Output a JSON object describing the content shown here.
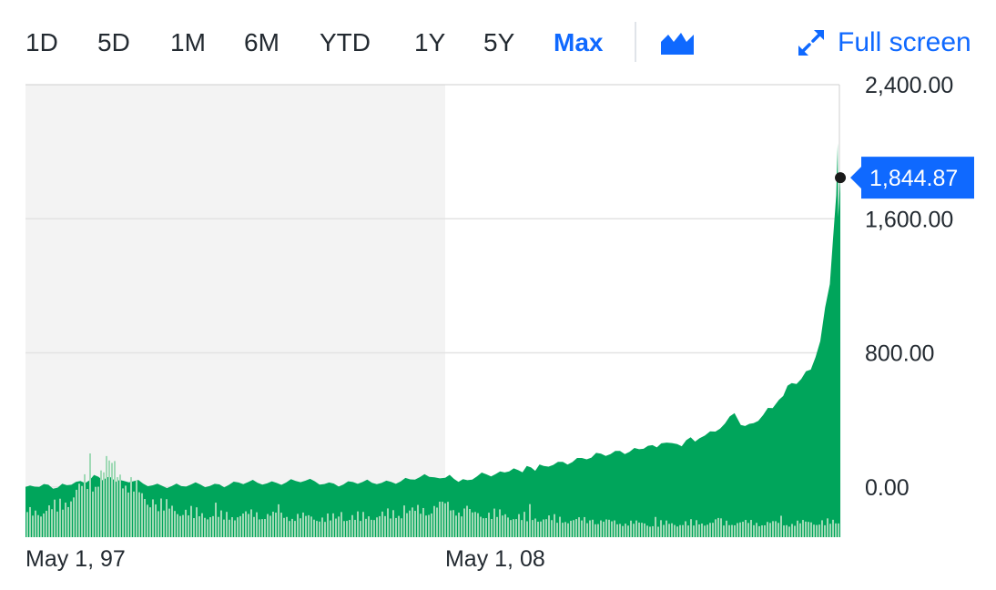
{
  "range_buttons": [
    {
      "label": "1D",
      "active": false
    },
    {
      "label": "5D",
      "active": false
    },
    {
      "label": "1M",
      "active": false
    },
    {
      "label": "6M",
      "active": false
    },
    {
      "label": "YTD",
      "active": false
    },
    {
      "label": "1Y",
      "active": false
    },
    {
      "label": "5Y",
      "active": false
    },
    {
      "label": "Max",
      "active": true
    }
  ],
  "chart_type_icon": "area-chart-icon",
  "fullscreen": {
    "label": "Full screen",
    "icon": "expand-arrows-icon"
  },
  "colors": {
    "accent": "#0f69ff",
    "area_fill": "#00a55b",
    "volume_bar": "#9fd9b5",
    "shaded_band": "#f3f3f3",
    "grid": "#e3e3e3",
    "flag": "#0f69ff"
  },
  "chart_data": {
    "type": "area",
    "x_start": "1997-05",
    "x_end": "2018-09",
    "x_ticks": [
      {
        "label": "May 1, 97",
        "date": "1997-05"
      },
      {
        "label": "May 1, 08",
        "date": "2008-05"
      }
    ],
    "y_ticks": [
      "2,400.00",
      "1,600.00",
      "800.00",
      "0.00"
    ],
    "y_tick_values": [
      2400,
      1600,
      800,
      0
    ],
    "ylim": [
      -300,
      2400
    ],
    "shaded_period": {
      "start": "1997-05",
      "end": "2008-05"
    },
    "current_price": 1844.87,
    "current_price_label": "1,844.87",
    "grid": true,
    "price_series": [
      {
        "x": "1997-05",
        "y": 0
      },
      {
        "x": "1998-06",
        "y": 10
      },
      {
        "x": "1999-04",
        "y": 60
      },
      {
        "x": "1999-12",
        "y": 35
      },
      {
        "x": "2000-06",
        "y": 20
      },
      {
        "x": "2001-06",
        "y": 5
      },
      {
        "x": "2002-06",
        "y": 15
      },
      {
        "x": "2003-06",
        "y": 25
      },
      {
        "x": "2004-06",
        "y": 35
      },
      {
        "x": "2005-06",
        "y": 20
      },
      {
        "x": "2006-06",
        "y": 25
      },
      {
        "x": "2007-06",
        "y": 45
      },
      {
        "x": "2007-12",
        "y": 60
      },
      {
        "x": "2008-05",
        "y": 55
      },
      {
        "x": "2008-12",
        "y": 40
      },
      {
        "x": "2009-06",
        "y": 75
      },
      {
        "x": "2010-04",
        "y": 100
      },
      {
        "x": "2010-12",
        "y": 125
      },
      {
        "x": "2011-06",
        "y": 150
      },
      {
        "x": "2012-03",
        "y": 175
      },
      {
        "x": "2012-12",
        "y": 215
      },
      {
        "x": "2013-06",
        "y": 225
      },
      {
        "x": "2014-01",
        "y": 260
      },
      {
        "x": "2014-06",
        "y": 255
      },
      {
        "x": "2015-01",
        "y": 290
      },
      {
        "x": "2015-06",
        "y": 330
      },
      {
        "x": "2015-12",
        "y": 440
      },
      {
        "x": "2016-02",
        "y": 370
      },
      {
        "x": "2016-06",
        "y": 380
      },
      {
        "x": "2016-12",
        "y": 470
      },
      {
        "x": "2017-02",
        "y": 520
      },
      {
        "x": "2017-06",
        "y": 620
      },
      {
        "x": "2017-12",
        "y": 700
      },
      {
        "x": "2018-03",
        "y": 870
      },
      {
        "x": "2018-06",
        "y": 1210
      },
      {
        "x": "2018-07",
        "y": 1480
      },
      {
        "x": "2018-08",
        "y": 1740
      },
      {
        "x": "2018-08-15",
        "y": 2050
      },
      {
        "x": "2018-08-20",
        "y": 1610
      },
      {
        "x": "2018-09-01",
        "y": 1750
      },
      {
        "x": "2018-09-10",
        "y": 1844.87
      }
    ],
    "volume_series": [
      {
        "x": "1997-05",
        "v": 3.4
      },
      {
        "x": "1998-03",
        "v": 4.5
      },
      {
        "x": "1998-12",
        "v": 7.8
      },
      {
        "x": "1999-06",
        "v": 10.4
      },
      {
        "x": "1999-12",
        "v": 9.0
      },
      {
        "x": "2000-06",
        "v": 5.4
      },
      {
        "x": "2001-06",
        "v": 3.8
      },
      {
        "x": "2002-06",
        "v": 3.1
      },
      {
        "x": "2003-06",
        "v": 3.4
      },
      {
        "x": "2004-06",
        "v": 3.0
      },
      {
        "x": "2005-06",
        "v": 2.8
      },
      {
        "x": "2006-06",
        "v": 3.1
      },
      {
        "x": "2007-06",
        "v": 3.7
      },
      {
        "x": "2008-05",
        "v": 4.7
      },
      {
        "x": "2008-12",
        "v": 3.4
      },
      {
        "x": "2009-06",
        "v": 3.5
      },
      {
        "x": "2010-06",
        "v": 2.9
      },
      {
        "x": "2011-06",
        "v": 2.6
      },
      {
        "x": "2012-06",
        "v": 2.3
      },
      {
        "x": "2013-06",
        "v": 2.0
      },
      {
        "x": "2014-06",
        "v": 2.0
      },
      {
        "x": "2015-06",
        "v": 2.2
      },
      {
        "x": "2016-06",
        "v": 2.1
      },
      {
        "x": "2017-06",
        "v": 2.0
      },
      {
        "x": "2018-03",
        "v": 2.3
      },
      {
        "x": "2018-09",
        "v": 2.0
      }
    ]
  }
}
